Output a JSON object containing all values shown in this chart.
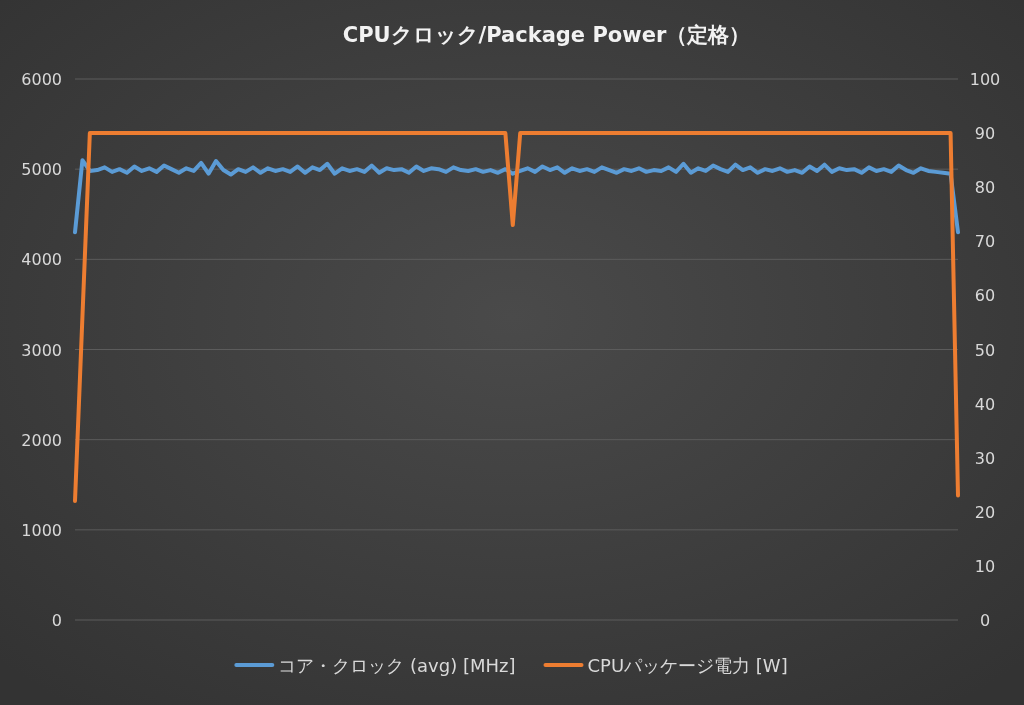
{
  "chart_data": {
    "type": "line",
    "title": "CPUクロック/Package Power（定格）",
    "categories": [
      null,
      null,
      null,
      null,
      null,
      null,
      null,
      null,
      null,
      null,
      null,
      null,
      null,
      null,
      null,
      null,
      null,
      null,
      null,
      null,
      null,
      null,
      null,
      null,
      null,
      null,
      null,
      null,
      null,
      null,
      null,
      null,
      null,
      null,
      null,
      null,
      null,
      null,
      null,
      null,
      null,
      null,
      null,
      null,
      null,
      null,
      null,
      null,
      null,
      null,
      null,
      null,
      null,
      null,
      null,
      null,
      null,
      null,
      null,
      null,
      null,
      null,
      null,
      null,
      null,
      null,
      null,
      null,
      null,
      null,
      null,
      null,
      null,
      null,
      null,
      null,
      null,
      null,
      null,
      null,
      null,
      null,
      null,
      null,
      null,
      null,
      null,
      null,
      null,
      null,
      null,
      null,
      null,
      null,
      null,
      null,
      null,
      null,
      null,
      null,
      null,
      null,
      null,
      null,
      null,
      null,
      null,
      null,
      null,
      null,
      null,
      null,
      null,
      null,
      null,
      null,
      null,
      null,
      null,
      null
    ],
    "series": [
      {
        "name": "コア・クロック (avg) [MHz]",
        "color": "#5b9bd5",
        "axis": "y",
        "values": [
          4300,
          5100,
          4980,
          4990,
          5020,
          4970,
          5000,
          4960,
          5030,
          4980,
          5010,
          4970,
          5040,
          5000,
          4960,
          5010,
          4980,
          5070,
          4950,
          5090,
          4990,
          4940,
          5000,
          4970,
          5020,
          4960,
          5010,
          4980,
          5000,
          4970,
          5030,
          4960,
          5020,
          4990,
          5060,
          4950,
          5010,
          4980,
          5000,
          4970,
          5040,
          4960,
          5010,
          4990,
          5000,
          4960,
          5030,
          4980,
          5010,
          5000,
          4970,
          5020,
          4990,
          4980,
          5000,
          4970,
          4990,
          4960,
          5000,
          4950,
          4980,
          5010,
          4970,
          5030,
          4990,
          5020,
          4960,
          5010,
          4980,
          5000,
          4970,
          5020,
          4990,
          4960,
          5000,
          4980,
          5010,
          4970,
          4990,
          4980,
          5020,
          4970,
          5060,
          4960,
          5010,
          4980,
          5040,
          5000,
          4970,
          5050,
          4990,
          5020,
          4960,
          5000,
          4980,
          5010,
          4970,
          4990,
          4960,
          5030,
          4980,
          5050,
          4970,
          5010,
          4990,
          5000,
          4960,
          5020,
          4980,
          5000,
          4970,
          5040,
          4990,
          4960,
          5010,
          4980,
          4970,
          4960,
          4950,
          4300
        ]
      },
      {
        "name": "CPUパッケージ電力 [W]",
        "color": "#ed7d31",
        "axis": "y2",
        "values": [
          22,
          56,
          90,
          90,
          90,
          90,
          90,
          90,
          90,
          90,
          90,
          90,
          90,
          90,
          90,
          90,
          90,
          90,
          90,
          90,
          90,
          90,
          90,
          90,
          90,
          90,
          90,
          90,
          90,
          90,
          90,
          90,
          90,
          90,
          90,
          90,
          90,
          90,
          90,
          90,
          90,
          90,
          90,
          90,
          90,
          90,
          90,
          90,
          90,
          90,
          90,
          90,
          90,
          90,
          90,
          90,
          90,
          90,
          90,
          73,
          90,
          90,
          90,
          90,
          90,
          90,
          90,
          90,
          90,
          90,
          90,
          90,
          90,
          90,
          90,
          90,
          90,
          90,
          90,
          90,
          90,
          90,
          90,
          90,
          90,
          90,
          90,
          90,
          90,
          90,
          90,
          90,
          90,
          90,
          90,
          90,
          90,
          90,
          90,
          90,
          90,
          90,
          90,
          90,
          90,
          90,
          90,
          90,
          90,
          90,
          90,
          90,
          90,
          90,
          90,
          90,
          90,
          90,
          90,
          23
        ]
      }
    ],
    "ylim": [
      0,
      6000
    ],
    "yticks": [
      0,
      1000,
      2000,
      3000,
      4000,
      5000,
      6000
    ],
    "y2lim": [
      0,
      100
    ],
    "y2ticks": [
      0,
      10,
      20,
      30,
      40,
      50,
      60,
      70,
      80,
      90,
      100
    ],
    "grid": "y",
    "legend": "bottom"
  }
}
